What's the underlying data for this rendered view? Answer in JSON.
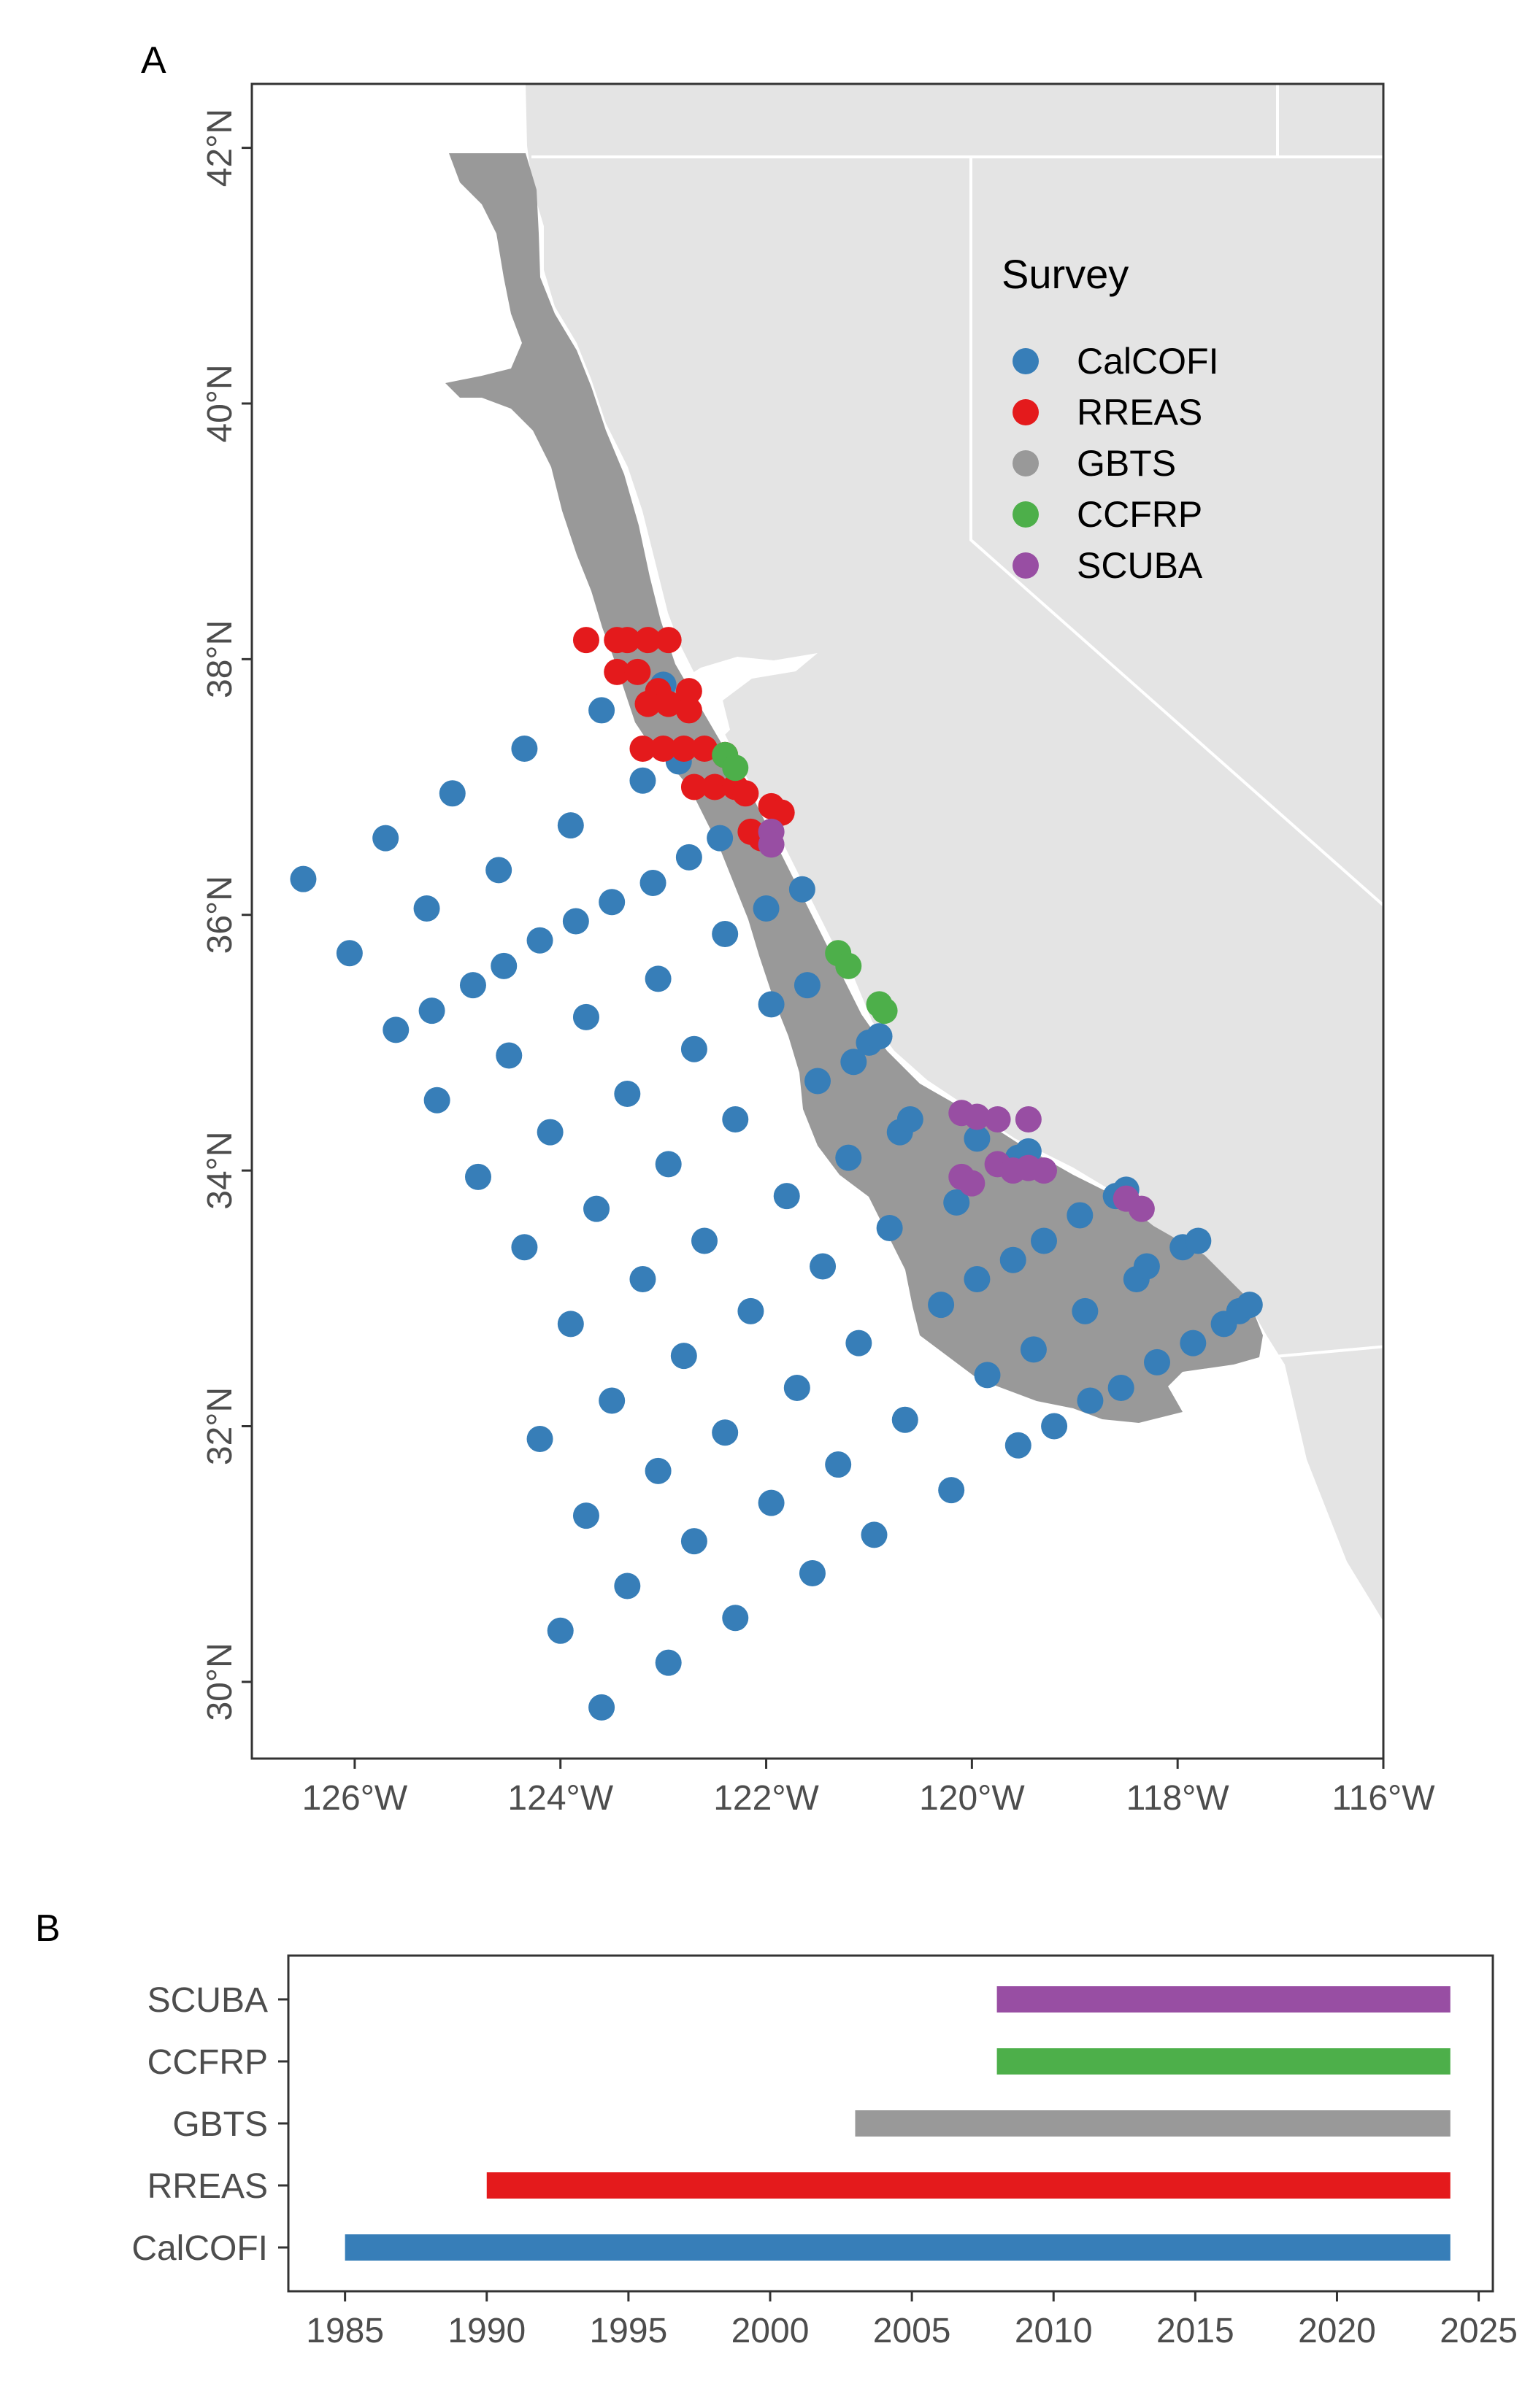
{
  "chart_data": [
    {
      "panel": "A",
      "type": "scatter",
      "title": "",
      "xlabel": "",
      "ylabel": "",
      "xlim": [
        -127,
        -116
      ],
      "ylim": [
        29.4,
        42.5
      ],
      "x_ticks": [
        -126,
        -124,
        -122,
        -120,
        -118,
        -116
      ],
      "x_tick_labels": [
        "126°W",
        "124°W",
        "122°W",
        "120°W",
        "118°W",
        "116°W"
      ],
      "y_ticks": [
        30,
        32,
        34,
        36,
        38,
        40,
        42
      ],
      "y_tick_labels": [
        "30°N",
        "32°N",
        "34°N",
        "36°N",
        "38°N",
        "40°N",
        "42°N"
      ],
      "grid": false,
      "legend": {
        "title": "Survey",
        "placement": "top-right (inside)",
        "entries": [
          "CalCOFI",
          "RREAS",
          "GBTS",
          "CCFRP",
          "SCUBA"
        ]
      },
      "colors": {
        "CalCOFI": "#377eb8",
        "RREAS": "#e41a1c",
        "GBTS": "#999999",
        "CCFRP": "#4daf4a",
        "SCUBA": "#984ea3",
        "land": "#e4e4e4",
        "shelf": "#999999"
      },
      "series": [
        {
          "name": "CalCOFI",
          "points": [
            [
              -126.5,
              36.28
            ],
            [
              -126.05,
              35.7
            ],
            [
              -125.7,
              36.6
            ],
            [
              -125.6,
              35.1
            ],
            [
              -125.3,
              36.05
            ],
            [
              -125.25,
              35.25
            ],
            [
              -125.2,
              34.55
            ],
            [
              -125.05,
              36.95
            ],
            [
              -124.85,
              35.45
            ],
            [
              -124.8,
              33.95
            ],
            [
              -124.6,
              36.35
            ],
            [
              -124.55,
              35.6
            ],
            [
              -124.5,
              34.9
            ],
            [
              -124.35,
              37.3
            ],
            [
              -124.35,
              33.4
            ],
            [
              -124.2,
              35.8
            ],
            [
              -124.2,
              31.9
            ],
            [
              -124.1,
              34.3
            ],
            [
              -124.0,
              30.4
            ],
            [
              -123.9,
              36.7
            ],
            [
              -123.9,
              32.8
            ],
            [
              -123.85,
              35.95
            ],
            [
              -123.75,
              35.2
            ],
            [
              -123.75,
              31.3
            ],
            [
              -123.65,
              33.7
            ],
            [
              -123.6,
              37.6
            ],
            [
              -123.6,
              29.8
            ],
            [
              -123.5,
              36.1
            ],
            [
              -123.5,
              32.2
            ],
            [
              -123.35,
              34.6
            ],
            [
              -123.35,
              30.75
            ],
            [
              -123.2,
              33.15
            ],
            [
              -123.2,
              37.05
            ],
            [
              -123.1,
              36.25
            ],
            [
              -123.05,
              35.5
            ],
            [
              -123.05,
              31.65
            ],
            [
              -123.0,
              37.8
            ],
            [
              -122.95,
              34.05
            ],
            [
              -122.95,
              30.15
            ],
            [
              -122.85,
              37.2
            ],
            [
              -122.8,
              32.55
            ],
            [
              -122.75,
              36.45
            ],
            [
              -122.7,
              34.95
            ],
            [
              -122.7,
              31.1
            ],
            [
              -122.6,
              33.45
            ],
            [
              -122.45,
              36.6
            ],
            [
              -122.4,
              35.85
            ],
            [
              -122.4,
              31.95
            ],
            [
              -122.3,
              34.4
            ],
            [
              -122.3,
              30.5
            ],
            [
              -122.15,
              32.9
            ],
            [
              -122.0,
              36.05
            ],
            [
              -121.95,
              35.3
            ],
            [
              -121.95,
              31.4
            ],
            [
              -121.8,
              33.8
            ],
            [
              -121.7,
              32.3
            ],
            [
              -121.65,
              36.2
            ],
            [
              -121.6,
              35.45
            ],
            [
              -121.55,
              30.85
            ],
            [
              -121.5,
              34.7
            ],
            [
              -121.45,
              33.25
            ],
            [
              -121.3,
              31.7
            ],
            [
              -121.2,
              34.1
            ],
            [
              -121.15,
              34.85
            ],
            [
              -121.1,
              32.65
            ],
            [
              -121.0,
              35.0
            ],
            [
              -120.95,
              31.15
            ],
            [
              -120.9,
              35.05
            ],
            [
              -120.8,
              33.55
            ],
            [
              -120.7,
              34.3
            ],
            [
              -120.65,
              32.05
            ],
            [
              -120.6,
              34.4
            ],
            [
              -120.3,
              32.95
            ],
            [
              -120.2,
              31.5
            ],
            [
              -120.15,
              33.75
            ],
            [
              -119.95,
              34.25
            ],
            [
              -119.95,
              33.15
            ],
            [
              -119.85,
              32.4
            ],
            [
              -119.6,
              33.3
            ],
            [
              -119.55,
              34.1
            ],
            [
              -119.55,
              31.85
            ],
            [
              -119.45,
              34.15
            ],
            [
              -119.4,
              32.6
            ],
            [
              -119.3,
              33.45
            ],
            [
              -119.2,
              32.0
            ],
            [
              -118.95,
              33.65
            ],
            [
              -118.9,
              32.9
            ],
            [
              -118.85,
              32.2
            ],
            [
              -118.6,
              33.8
            ],
            [
              -118.55,
              32.3
            ],
            [
              -118.5,
              33.85
            ],
            [
              -118.4,
              33.15
            ],
            [
              -118.3,
              33.25
            ],
            [
              -118.2,
              32.5
            ],
            [
              -117.95,
              33.4
            ],
            [
              -117.85,
              32.65
            ],
            [
              -117.8,
              33.45
            ],
            [
              -117.55,
              32.8
            ],
            [
              -117.4,
              32.9
            ],
            [
              -117.3,
              32.95
            ]
          ]
        },
        {
          "name": "RREAS",
          "points": [
            [
              -123.75,
              38.15
            ],
            [
              -123.45,
              38.15
            ],
            [
              -123.35,
              38.15
            ],
            [
              -123.15,
              38.15
            ],
            [
              -122.95,
              38.15
            ],
            [
              -123.45,
              37.9
            ],
            [
              -123.25,
              37.9
            ],
            [
              -123.05,
              37.75
            ],
            [
              -122.75,
              37.75
            ],
            [
              -123.15,
              37.65
            ],
            [
              -122.95,
              37.65
            ],
            [
              -122.75,
              37.6
            ],
            [
              -123.2,
              37.3
            ],
            [
              -123.0,
              37.3
            ],
            [
              -122.8,
              37.3
            ],
            [
              -122.6,
              37.3
            ],
            [
              -122.4,
              37.25
            ],
            [
              -122.7,
              37.0
            ],
            [
              -122.5,
              37.0
            ],
            [
              -122.3,
              37.0
            ],
            [
              -122.2,
              36.95
            ],
            [
              -121.95,
              36.85
            ],
            [
              -121.85,
              36.8
            ],
            [
              -122.15,
              36.65
            ],
            [
              -122.05,
              36.6
            ]
          ]
        },
        {
          "name": "CCFRP",
          "points": [
            [
              -122.4,
              37.25
            ],
            [
              -122.3,
              37.15
            ],
            [
              -121.3,
              35.7
            ],
            [
              -121.2,
              35.6
            ],
            [
              -120.9,
              35.3
            ],
            [
              -120.85,
              35.25
            ]
          ]
        },
        {
          "name": "SCUBA",
          "points": [
            [
              -121.95,
              36.65
            ],
            [
              -121.95,
              36.55
            ],
            [
              -120.1,
              34.45
            ],
            [
              -119.95,
              34.42
            ],
            [
              -119.75,
              34.4
            ],
            [
              -119.45,
              34.4
            ],
            [
              -120.1,
              33.95
            ],
            [
              -120.0,
              33.9
            ],
            [
              -119.75,
              34.05
            ],
            [
              -119.6,
              34.0
            ],
            [
              -119.45,
              34.02
            ],
            [
              -119.3,
              34.0
            ],
            [
              -118.5,
              33.78
            ],
            [
              -118.35,
              33.7
            ]
          ]
        }
      ]
    },
    {
      "panel": "B",
      "type": "bar",
      "orientation": "horizontal",
      "title": "",
      "xlabel": "",
      "ylabel": "",
      "xlim": [
        1983,
        2025.5
      ],
      "x_ticks": [
        1985,
        1990,
        1995,
        2000,
        2005,
        2010,
        2015,
        2020,
        2025
      ],
      "categories": [
        "CalCOFI",
        "RREAS",
        "GBTS",
        "CCFRP",
        "SCUBA"
      ],
      "ranges": [
        {
          "name": "CalCOFI",
          "start": 1985,
          "end": 2024
        },
        {
          "name": "RREAS",
          "start": 1990,
          "end": 2024
        },
        {
          "name": "GBTS",
          "start": 2003,
          "end": 2024
        },
        {
          "name": "CCFRP",
          "start": 2008,
          "end": 2024
        },
        {
          "name": "SCUBA",
          "start": 2008,
          "end": 2024
        }
      ],
      "grid": false
    }
  ],
  "panel_labels": {
    "a": "A",
    "b": "B"
  }
}
